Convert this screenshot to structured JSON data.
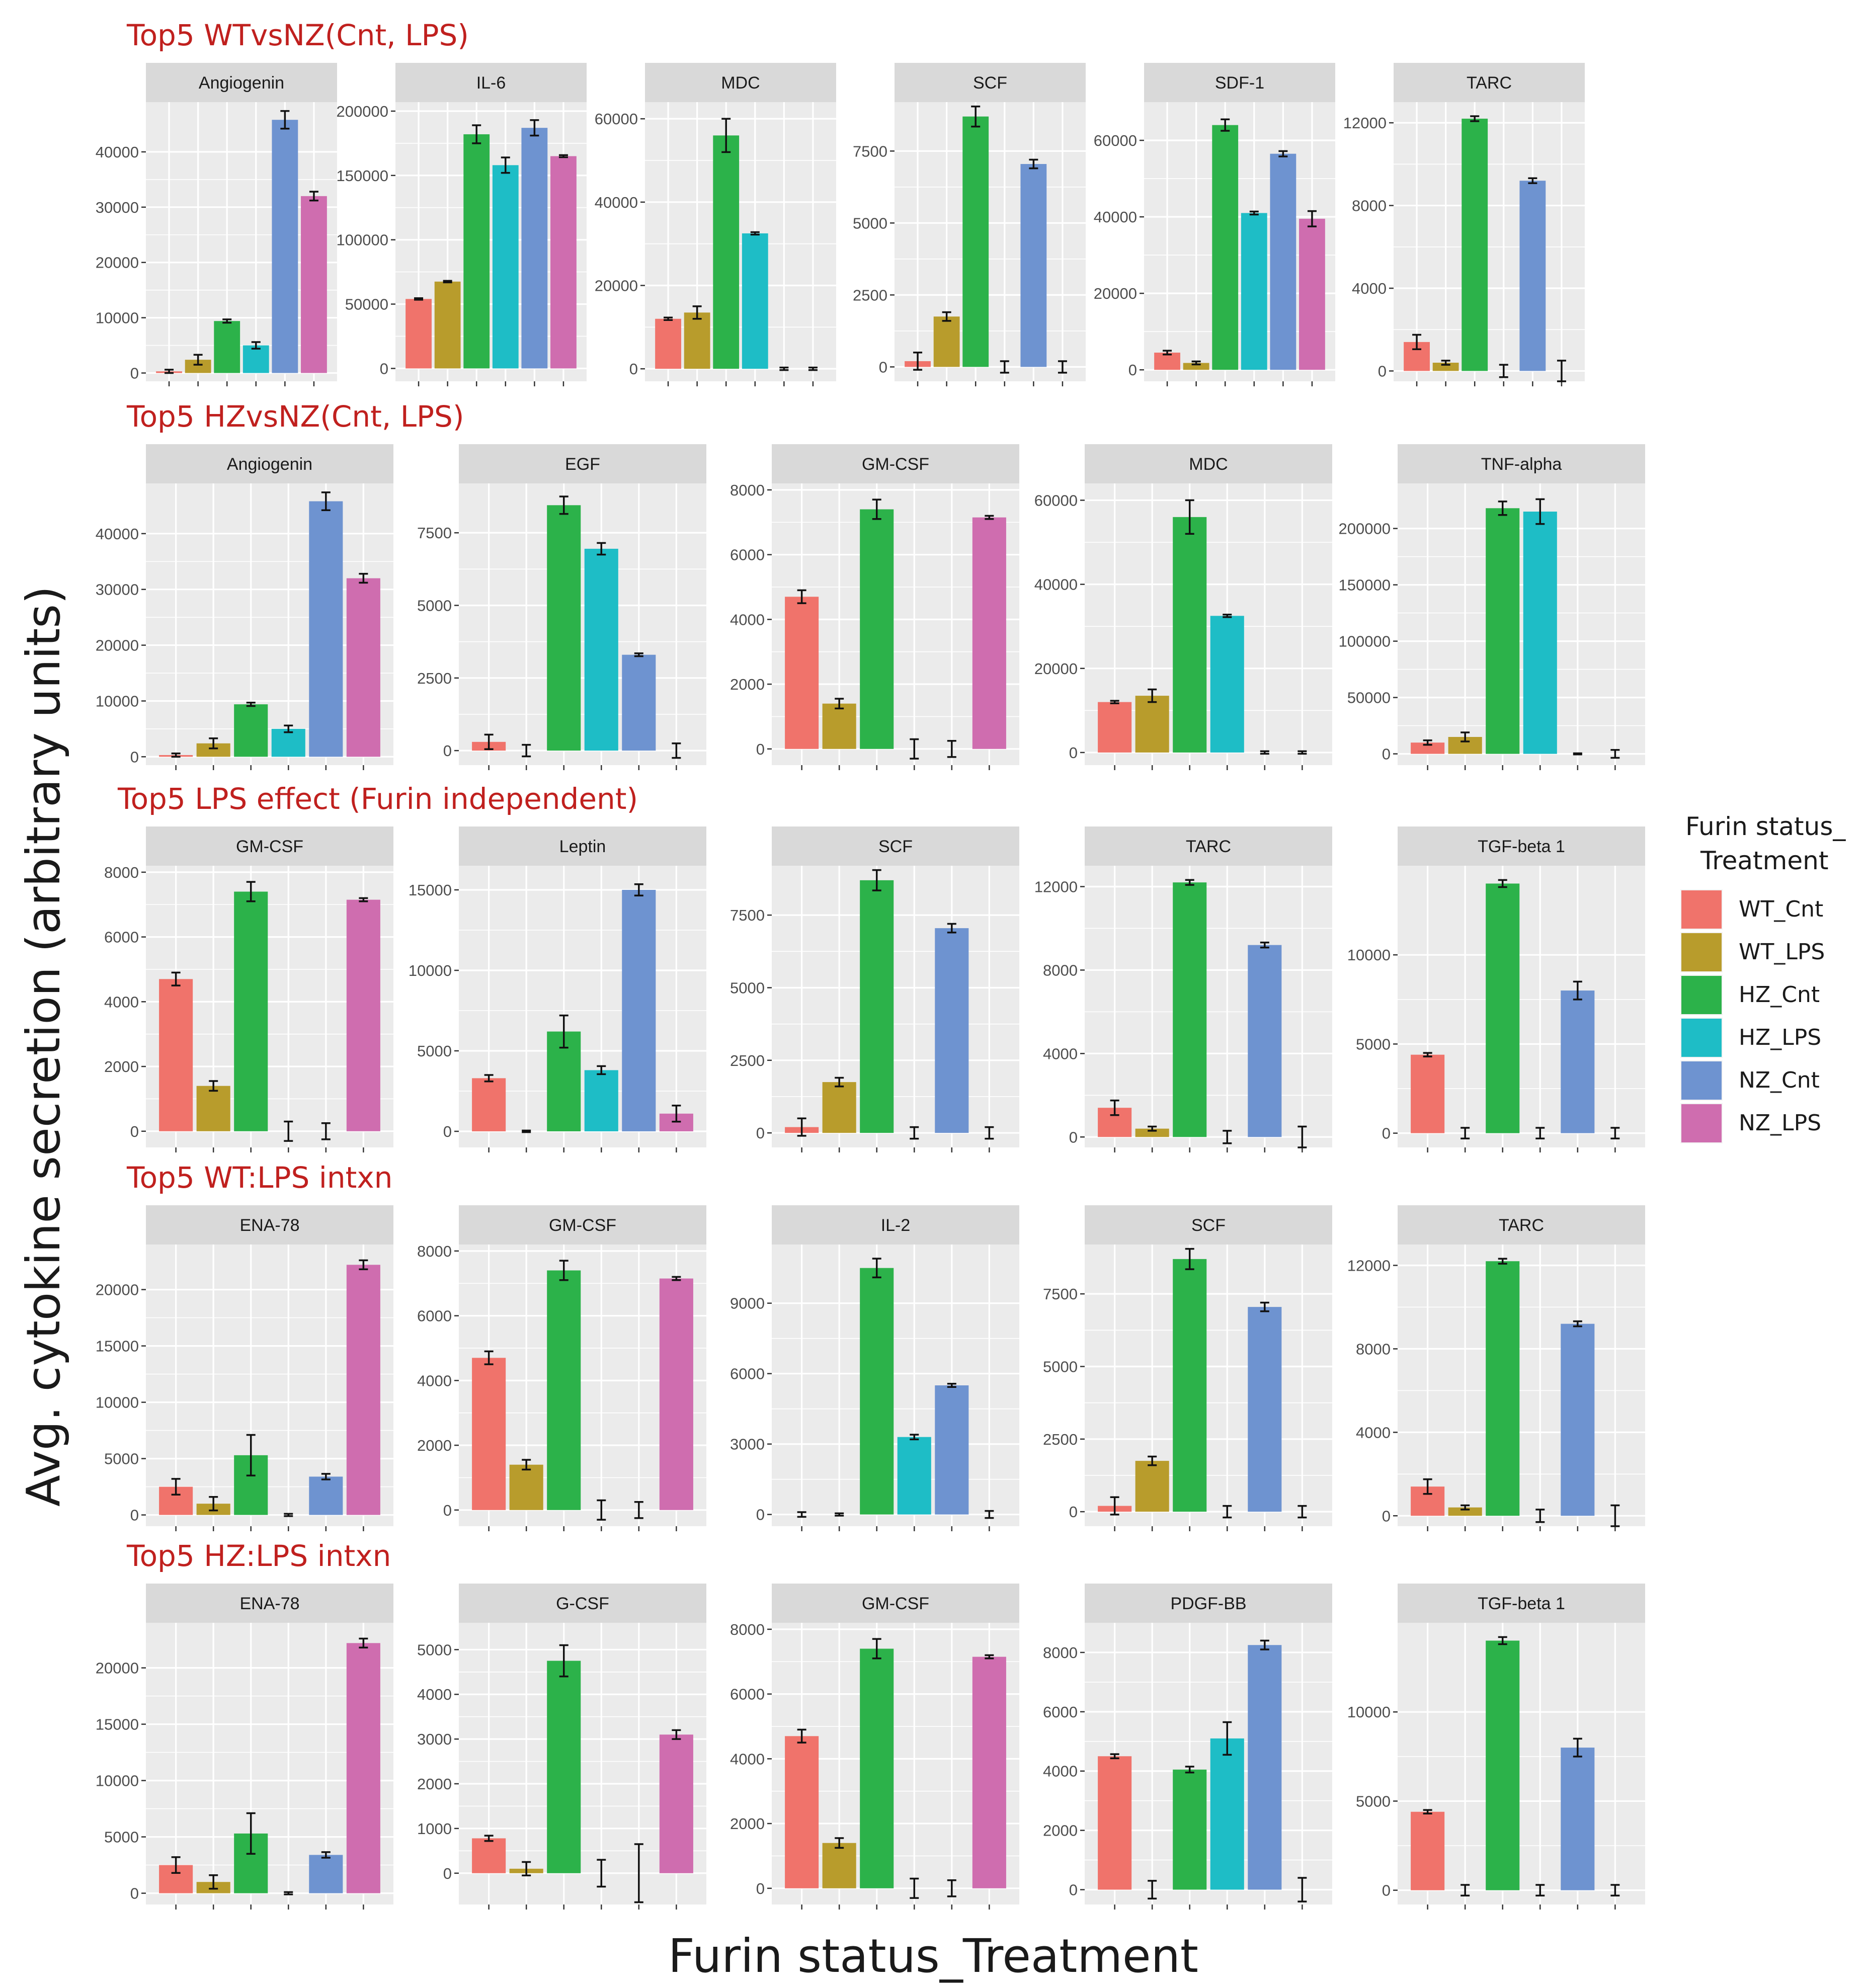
{
  "colors": {
    "WT_Cnt": "#F0736B",
    "WT_LPS": "#B89C2C",
    "HZ_Cnt": "#2CB24A",
    "HZ_LPS": "#1EBDC6",
    "NZ_Cnt": "#6E93D0",
    "NZ_LPS": "#CF6DAF",
    "row_title": "#C0201E",
    "panel_bg": "#EBEBEB",
    "strip_bg": "#D9D9D9"
  },
  "chart_data": {
    "type": "bar",
    "x_label": "Furin status_Treatment",
    "y_label": "Avg. cytokine secretion (arbitrary units)",
    "categories": [
      "WT_Cnt",
      "WT_LPS",
      "HZ_Cnt",
      "HZ_LPS",
      "NZ_Cnt",
      "NZ_LPS"
    ],
    "legend": {
      "title_line1": "Furin status_",
      "title_line2": "Treatment",
      "items": [
        "WT_Cnt",
        "WT_LPS",
        "HZ_Cnt",
        "HZ_LPS",
        "NZ_Cnt",
        "NZ_LPS"
      ]
    },
    "rows": [
      {
        "title": "Top5 WTvsNZ(Cnt, LPS)",
        "panels": [
          {
            "name": "Angiogenin",
            "ylim": [
              -1500,
              49000
            ],
            "yticks": [
              0,
              10000,
              20000,
              30000,
              40000
            ],
            "values": [
              300,
              2400,
              9400,
              5000,
              45800,
              32000
            ],
            "errors": [
              300,
              900,
              300,
              600,
              1600,
              800
            ]
          },
          {
            "name": "IL-6",
            "ylim": [
              -10000,
              207000
            ],
            "yticks": [
              0,
              50000,
              100000,
              150000,
              200000
            ],
            "values": [
              54000,
              67500,
              182000,
              158000,
              187000,
              165000
            ],
            "errors": [
              600,
              600,
              7000,
              6000,
              6000,
              800
            ]
          },
          {
            "name": "MDC",
            "ylim": [
              -3000,
              64000
            ],
            "yticks": [
              0,
              20000,
              40000,
              60000
            ],
            "values": [
              12000,
              13500,
              56000,
              32500,
              0,
              0
            ],
            "errors": [
              300,
              1500,
              4000,
              300,
              300,
              300
            ]
          },
          {
            "name": "SCF",
            "ylim": [
              -500,
              9200
            ],
            "yticks": [
              0,
              2500,
              5000,
              7500
            ],
            "values": [
              200,
              1750,
              8700,
              0,
              7050,
              0
            ],
            "errors": [
              300,
              150,
              350,
              200,
              150,
              200
            ]
          },
          {
            "name": "SDF-1",
            "ylim": [
              -3000,
              70000
            ],
            "yticks": [
              0,
              20000,
              40000,
              60000
            ],
            "values": [
              4500,
              1800,
              64000,
              41000,
              56500,
              39500
            ],
            "errors": [
              500,
              400,
              1500,
              400,
              700,
              2000
            ]
          },
          {
            "name": "TARC",
            "ylim": [
              -500,
              13000
            ],
            "yticks": [
              0,
              4000,
              8000,
              12000
            ],
            "values": [
              1400,
              400,
              12200,
              0,
              9200,
              0
            ],
            "errors": [
              350,
              100,
              120,
              300,
              120,
              500
            ]
          }
        ]
      },
      {
        "title": "Top5 HZvsNZ(Cnt, LPS)",
        "panels": [
          {
            "name": "Angiogenin",
            "ylim": [
              -1500,
              49000
            ],
            "yticks": [
              0,
              10000,
              20000,
              30000,
              40000
            ],
            "values": [
              300,
              2400,
              9400,
              5000,
              45800,
              32000
            ],
            "errors": [
              300,
              900,
              300,
              600,
              1600,
              800
            ]
          },
          {
            "name": "EGF",
            "ylim": [
              -500,
              9200
            ],
            "yticks": [
              0,
              2500,
              5000,
              7500
            ],
            "values": [
              300,
              0,
              8450,
              6950,
              3300,
              0
            ],
            "errors": [
              250,
              200,
              300,
              200,
              50,
              250
            ]
          },
          {
            "name": "GM-CSF",
            "ylim": [
              -500,
              8200
            ],
            "yticks": [
              0,
              2000,
              4000,
              6000,
              8000
            ],
            "values": [
              4700,
              1400,
              7400,
              0,
              0,
              7150
            ],
            "errors": [
              200,
              150,
              300,
              300,
              250,
              50
            ]
          },
          {
            "name": "MDC",
            "ylim": [
              -3000,
              64000
            ],
            "yticks": [
              0,
              20000,
              40000,
              60000
            ],
            "values": [
              12000,
              13500,
              56000,
              32500,
              0,
              0
            ],
            "errors": [
              300,
              1500,
              4000,
              300,
              300,
              300
            ]
          },
          {
            "name": "TNF-alpha",
            "ylim": [
              -10000,
              240000
            ],
            "yticks": [
              0,
              50000,
              100000,
              150000,
              200000
            ],
            "values": [
              10000,
              15000,
              218000,
              215000,
              0,
              0
            ],
            "errors": [
              2000,
              4000,
              6000,
              11000,
              500,
              3500
            ]
          }
        ]
      },
      {
        "title": "Top5 LPS effect (Furin independent)",
        "panels": [
          {
            "name": "GM-CSF",
            "ylim": [
              -500,
              8200
            ],
            "yticks": [
              0,
              2000,
              4000,
              6000,
              8000
            ],
            "values": [
              4700,
              1400,
              7400,
              0,
              0,
              7150
            ],
            "errors": [
              200,
              150,
              300,
              300,
              250,
              50
            ]
          },
          {
            "name": "Leptin",
            "ylim": [
              -1000,
              16500
            ],
            "yticks": [
              0,
              5000,
              10000,
              15000
            ],
            "values": [
              3300,
              0,
              6200,
              3800,
              15000,
              1100
            ],
            "errors": [
              200,
              50,
              1000,
              250,
              350,
              500
            ]
          },
          {
            "name": "SCF",
            "ylim": [
              -500,
              9200
            ],
            "yticks": [
              0,
              2500,
              5000,
              7500
            ],
            "values": [
              200,
              1750,
              8700,
              0,
              7050,
              0
            ],
            "errors": [
              300,
              150,
              350,
              200,
              150,
              200
            ]
          },
          {
            "name": "TARC",
            "ylim": [
              -500,
              13000
            ],
            "yticks": [
              0,
              4000,
              8000,
              12000
            ],
            "values": [
              1400,
              400,
              12200,
              0,
              9200,
              0
            ],
            "errors": [
              350,
              100,
              120,
              300,
              120,
              500
            ]
          },
          {
            "name": "TGF-beta 1",
            "ylim": [
              -800,
              15000
            ],
            "yticks": [
              0,
              5000,
              10000
            ],
            "values": [
              4400,
              0,
              14000,
              0,
              8000,
              0
            ],
            "errors": [
              100,
              300,
              200,
              300,
              500,
              300
            ]
          }
        ]
      },
      {
        "title": "Top5 WT:LPS intxn",
        "panels": [
          {
            "name": "ENA-78",
            "ylim": [
              -1000,
              24000
            ],
            "yticks": [
              0,
              5000,
              10000,
              15000,
              20000
            ],
            "values": [
              2500,
              1000,
              5300,
              0,
              3400,
              22200
            ],
            "errors": [
              700,
              600,
              1800,
              100,
              250,
              400
            ]
          },
          {
            "name": "GM-CSF",
            "ylim": [
              -500,
              8200
            ],
            "yticks": [
              0,
              2000,
              4000,
              6000,
              8000
            ],
            "values": [
              4700,
              1400,
              7400,
              0,
              0,
              7150
            ],
            "errors": [
              200,
              150,
              300,
              300,
              250,
              50
            ]
          },
          {
            "name": "IL-2",
            "ylim": [
              -500,
              11500
            ],
            "yticks": [
              0,
              3000,
              6000,
              9000
            ],
            "values": [
              0,
              0,
              10500,
              3300,
              5500,
              0
            ],
            "errors": [
              100,
              50,
              400,
              100,
              70,
              150
            ]
          },
          {
            "name": "SCF",
            "ylim": [
              -500,
              9200
            ],
            "yticks": [
              0,
              2500,
              5000,
              7500
            ],
            "values": [
              200,
              1750,
              8700,
              0,
              7050,
              0
            ],
            "errors": [
              300,
              150,
              350,
              200,
              150,
              200
            ]
          },
          {
            "name": "TARC",
            "ylim": [
              -500,
              13000
            ],
            "yticks": [
              0,
              4000,
              8000,
              12000
            ],
            "values": [
              1400,
              400,
              12200,
              0,
              9200,
              0
            ],
            "errors": [
              350,
              100,
              120,
              300,
              120,
              500
            ]
          }
        ]
      },
      {
        "title": "Top5 HZ:LPS intxn",
        "panels": [
          {
            "name": "ENA-78",
            "ylim": [
              -1000,
              24000
            ],
            "yticks": [
              0,
              5000,
              10000,
              15000,
              20000
            ],
            "values": [
              2500,
              1000,
              5300,
              0,
              3400,
              22200
            ],
            "errors": [
              700,
              600,
              1800,
              100,
              250,
              400
            ]
          },
          {
            "name": "G-CSF",
            "ylim": [
              -700,
              5600
            ],
            "yticks": [
              0,
              1000,
              2000,
              3000,
              4000,
              5000
            ],
            "values": [
              780,
              100,
              4750,
              0,
              0,
              3100
            ],
            "errors": [
              60,
              150,
              350,
              300,
              650,
              100
            ]
          },
          {
            "name": "GM-CSF",
            "ylim": [
              -500,
              8200
            ],
            "yticks": [
              0,
              2000,
              4000,
              6000,
              8000
            ],
            "values": [
              4700,
              1400,
              7400,
              0,
              0,
              7150
            ],
            "errors": [
              200,
              150,
              300,
              300,
              250,
              50
            ]
          },
          {
            "name": "PDGF-BB",
            "ylim": [
              -500,
              9000
            ],
            "yticks": [
              0,
              2000,
              4000,
              6000,
              8000
            ],
            "values": [
              4500,
              0,
              4050,
              5100,
              8250,
              0
            ],
            "errors": [
              70,
              300,
              100,
              550,
              150,
              400
            ]
          },
          {
            "name": "TGF-beta 1",
            "ylim": [
              -800,
              15000
            ],
            "yticks": [
              0,
              5000,
              10000
            ],
            "values": [
              4400,
              0,
              14000,
              0,
              8000,
              0
            ],
            "errors": [
              100,
              300,
              200,
              300,
              500,
              300
            ]
          }
        ]
      }
    ]
  }
}
